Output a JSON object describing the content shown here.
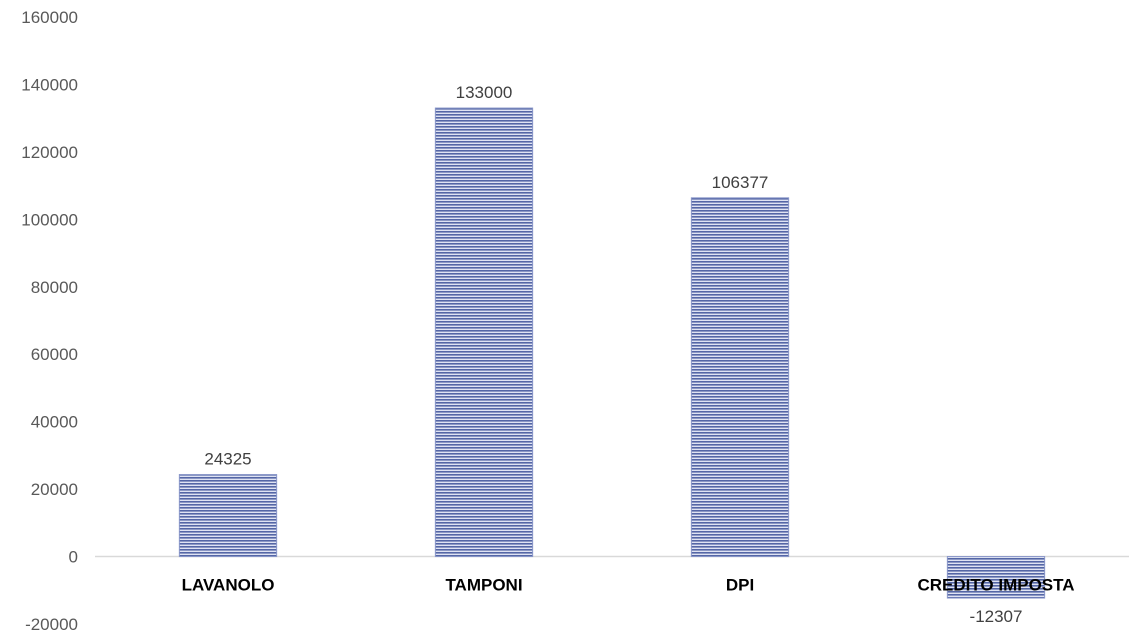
{
  "chart_data": {
    "type": "bar",
    "title": "",
    "xlabel": "",
    "ylabel": "",
    "categories": [
      "LAVANOLO",
      "TAMPONI",
      "DPI",
      "CREDITO IMPOSTA"
    ],
    "values": [
      24325,
      133000,
      106377,
      -12307
    ],
    "data_labels": [
      "24325",
      "133000",
      "106377",
      "-12307"
    ],
    "ylim": [
      -20000,
      160000
    ],
    "yticks": [
      -20000,
      0,
      20000,
      40000,
      60000,
      80000,
      100000,
      120000,
      140000,
      160000
    ],
    "ytick_labels": [
      "-20000",
      "0",
      "20000",
      "40000",
      "60000",
      "80000",
      "100000",
      "120000",
      "140000",
      "160000"
    ],
    "grid": false,
    "legend": "none",
    "bar_fill": "horizontal-stripes",
    "colors": {
      "bar_stripe_dark": "#5466a6",
      "bar_stripe_light": "#dfe3f3",
      "bar_border": "#8a97c9",
      "axis_line": "#d9d9d9",
      "tick_text": "#595959",
      "category_text": "#000000",
      "data_label_text": "#404040"
    }
  }
}
